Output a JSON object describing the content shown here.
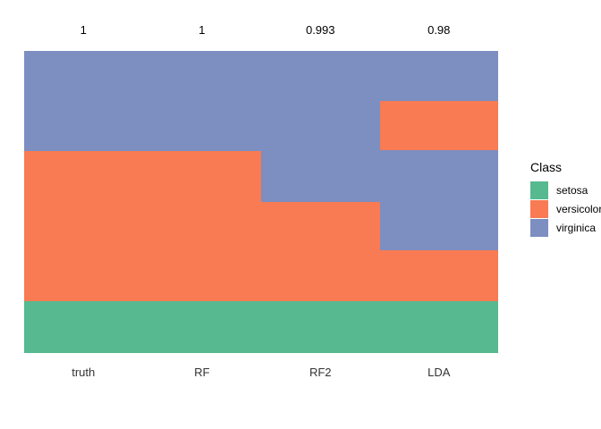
{
  "chart_data": {
    "type": "bar",
    "subtype": "stacked-prediction-strips",
    "title": "",
    "xlabel": "",
    "ylabel": "",
    "grid": false,
    "categories": [
      "truth",
      "RF",
      "RF2",
      "LDA"
    ],
    "top_labels": [
      "1",
      "1",
      "0.993",
      "0.98"
    ],
    "colors": {
      "setosa": "#56B990",
      "versicolor": "#F87B53",
      "virginica": "#7D8EC1"
    },
    "columns": [
      {
        "name": "truth",
        "top_label": "1",
        "segments": [
          {
            "class": "virginica",
            "fraction": 0.331
          },
          {
            "class": "versicolor",
            "fraction": 0.497
          },
          {
            "class": "setosa",
            "fraction": 0.172
          }
        ]
      },
      {
        "name": "RF",
        "top_label": "1",
        "segments": [
          {
            "class": "virginica",
            "fraction": 0.331
          },
          {
            "class": "versicolor",
            "fraction": 0.497
          },
          {
            "class": "setosa",
            "fraction": 0.172
          }
        ]
      },
      {
        "name": "RF2",
        "top_label": "0.993",
        "segments": [
          {
            "class": "virginica",
            "fraction": 0.5
          },
          {
            "class": "versicolor",
            "fraction": 0.328
          },
          {
            "class": "setosa",
            "fraction": 0.172
          }
        ]
      },
      {
        "name": "LDA",
        "top_label": "0.98",
        "segments": [
          {
            "class": "virginica",
            "fraction": 0.166
          },
          {
            "class": "versicolor",
            "fraction": 0.163
          },
          {
            "class": "virginica",
            "fraction": 0.331
          },
          {
            "class": "versicolor",
            "fraction": 0.169
          },
          {
            "class": "setosa",
            "fraction": 0.171
          }
        ]
      }
    ],
    "legend": {
      "title": "Class",
      "position": "right",
      "entries": [
        {
          "label": "setosa",
          "class": "setosa"
        },
        {
          "label": "versicolor",
          "class": "versicolor"
        },
        {
          "label": "virginica",
          "class": "virginica"
        }
      ]
    }
  }
}
